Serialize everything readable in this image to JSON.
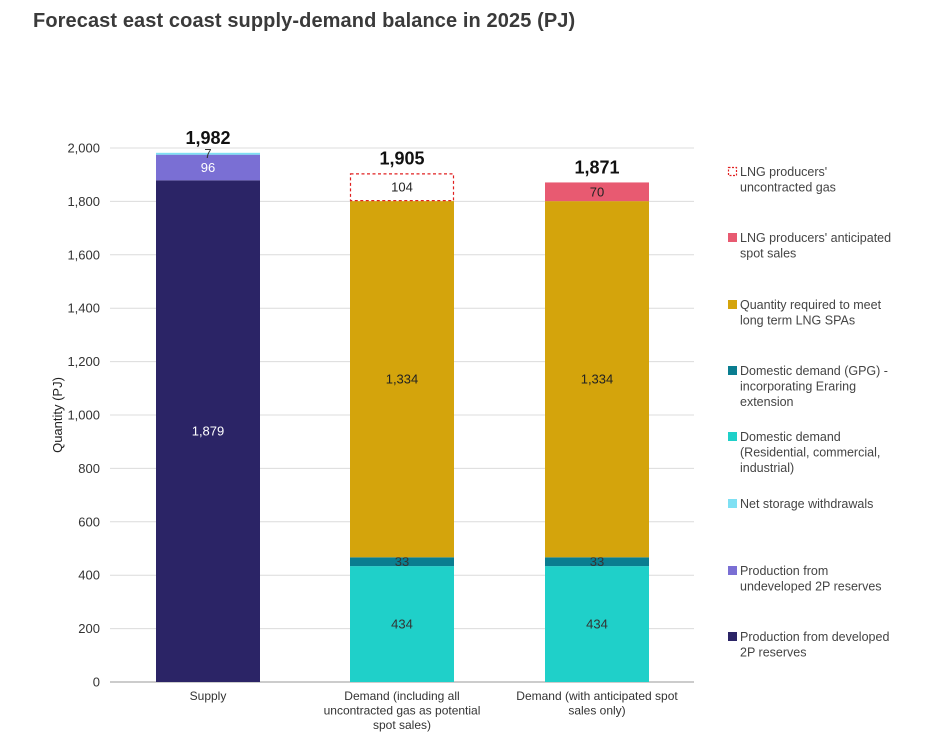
{
  "title": "Forecast east coast supply-demand balance in 2025 (PJ)",
  "chart_data": {
    "type": "bar",
    "stacked": true,
    "ylabel": "Quantity (PJ)",
    "xlabel": "",
    "ylim": [
      0,
      2000
    ],
    "yticks": [
      0,
      200,
      400,
      600,
      800,
      1000,
      1200,
      1400,
      1600,
      1800,
      2000
    ],
    "ytick_labels": [
      "0",
      "200",
      "400",
      "600",
      "800",
      "1,000",
      "1,200",
      "1,400",
      "1,600",
      "1,800",
      "2,000"
    ],
    "grid": true,
    "legend_position": "right",
    "categories": [
      [
        "Supply"
      ],
      [
        "Demand (including all",
        "uncontracted gas as potential",
        "spot sales)"
      ],
      [
        "Demand (with anticipated spot",
        "sales only)"
      ]
    ],
    "totals": [
      1982,
      1905,
      1871
    ],
    "total_labels": [
      "1,982",
      "1,905",
      "1,871"
    ],
    "series": [
      {
        "name": "Production from developed 2P reserves",
        "legend": [
          "Production from developed",
          "2P reserves"
        ],
        "color": "#2b2466",
        "style": "solid",
        "label_color": "#ffffff",
        "values": [
          1879,
          0,
          0
        ],
        "labels": [
          "1,879",
          "",
          ""
        ]
      },
      {
        "name": "Production from undeveloped 2P reserves",
        "legend": [
          "Production from",
          "undeveloped 2P reserves"
        ],
        "color": "#7a6fd4",
        "style": "solid",
        "label_color": "#ffffff",
        "values": [
          96,
          0,
          0
        ],
        "labels": [
          "96",
          "",
          ""
        ]
      },
      {
        "name": "Net storage withdrawals",
        "legend": [
          "Net storage withdrawals"
        ],
        "color": "#7fe0f3",
        "style": "solid",
        "label_color": "#333333",
        "values": [
          7,
          0,
          0
        ],
        "labels": [
          "7",
          "",
          ""
        ]
      },
      {
        "name": "Domestic demand (Residential, commercial, industrial)",
        "legend": [
          "Domestic demand",
          "(Residential, commercial,",
          "industrial)"
        ],
        "color": "#1fd0c9",
        "style": "solid",
        "label_color": "#333333",
        "values": [
          0,
          434,
          434
        ],
        "labels": [
          "",
          "434",
          "434"
        ]
      },
      {
        "name": "Domestic demand (GPG) - incorporating Eraring extension",
        "legend": [
          "Domestic demand (GPG) -",
          "incorporating Eraring",
          "extension"
        ],
        "color": "#0a7d90",
        "style": "solid",
        "label_color": "#333333",
        "values": [
          0,
          33,
          33
        ],
        "labels": [
          "",
          "33",
          "33"
        ]
      },
      {
        "name": "Quantity required to meet long term LNG SPAs",
        "legend": [
          "Quantity required to meet",
          "long term LNG SPAs"
        ],
        "color": "#d4a40c",
        "style": "solid",
        "label_color": "#222222",
        "values": [
          0,
          1334,
          1334
        ],
        "labels": [
          "",
          "1,334",
          "1,334"
        ]
      },
      {
        "name": "LNG producers' anticipated spot sales",
        "legend": [
          "LNG producers' anticipated",
          "spot sales"
        ],
        "color": "#e85a71",
        "style": "solid",
        "label_color": "#222222",
        "values": [
          0,
          0,
          70
        ],
        "labels": [
          "",
          "",
          "70"
        ]
      },
      {
        "name": "LNG producers' uncontracted gas",
        "legend": [
          "LNG producers'",
          "uncontracted gas"
        ],
        "color": "#e02020",
        "style": "dashed",
        "label_color": "#222222",
        "values": [
          0,
          104,
          0
        ],
        "labels": [
          "",
          "104",
          ""
        ]
      }
    ]
  }
}
